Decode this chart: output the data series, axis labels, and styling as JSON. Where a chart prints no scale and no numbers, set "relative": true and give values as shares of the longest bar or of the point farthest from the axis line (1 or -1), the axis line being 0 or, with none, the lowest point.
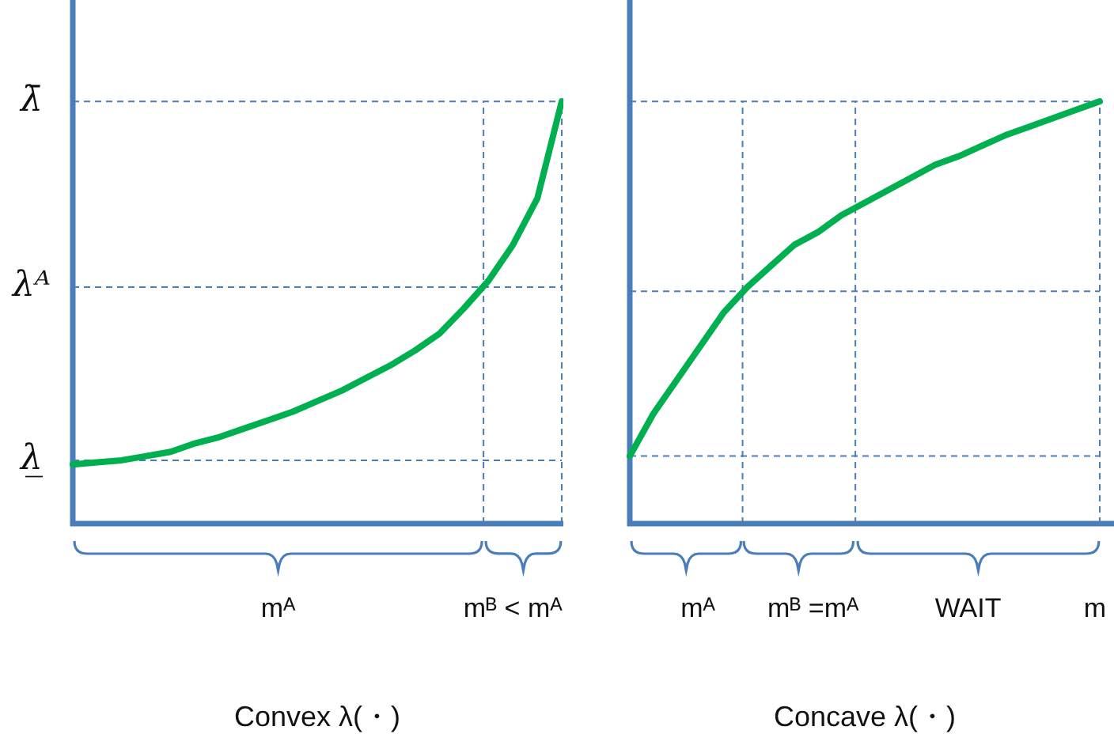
{
  "chart_data": [
    {
      "type": "line",
      "relative": true,
      "xlabel": "Convex λ(・)",
      "legend": false,
      "marker": "none",
      "line_style": "solid",
      "categories": [
        null,
        null,
        null,
        null,
        null,
        null,
        null,
        null,
        null,
        null,
        null,
        null,
        null,
        null,
        null,
        null,
        null,
        null,
        null,
        null,
        null
      ],
      "series": [
        {
          "color": "#00b050",
          "values": [
            0.14,
            0.145,
            0.15,
            0.16,
            0.17,
            0.19,
            0.205,
            0.225,
            0.245,
            0.265,
            0.29,
            0.315,
            0.345,
            0.375,
            0.41,
            0.45,
            0.51,
            0.575,
            0.66,
            0.77,
            1
          ]
        }
      ],
      "ref_lines": [
        {
          "axis": "y",
          "value": 1,
          "label": "λ̄"
        },
        {
          "axis": "y",
          "value": 0.56,
          "label": "λᴬ"
        },
        {
          "axis": "y",
          "value": 0.15,
          "label": "λ̲"
        }
      ],
      "annotations": [
        "mᴬ",
        "mᴮ < mᴬ"
      ]
    },
    {
      "type": "line",
      "relative": true,
      "xlabel": "Concave λ(・)",
      "legend": false,
      "marker": "none",
      "line_style": "solid",
      "categories": [
        null,
        null,
        null,
        null,
        null,
        null,
        null,
        null,
        null,
        null,
        null,
        null,
        null,
        null,
        null,
        null,
        null,
        null,
        null,
        null,
        null
      ],
      "series": [
        {
          "color": "#00b050",
          "values": [
            0.16,
            0.26,
            0.34,
            0.42,
            0.5,
            0.56,
            0.61,
            0.66,
            0.69,
            0.73,
            0.76,
            0.79,
            0.82,
            0.85,
            0.87,
            0.895,
            0.92,
            0.94,
            0.96,
            0.98,
            1
          ]
        }
      ],
      "ref_lines": [
        {
          "axis": "y",
          "value": 1,
          "label": null
        },
        {
          "axis": "y",
          "value": 0.55,
          "label": null
        },
        {
          "axis": "y",
          "value": 0.16,
          "label": null
        }
      ],
      "annotations": [
        "mᴬ",
        "mᴮ =mᴬ",
        "WAIT",
        "m"
      ]
    }
  ]
}
